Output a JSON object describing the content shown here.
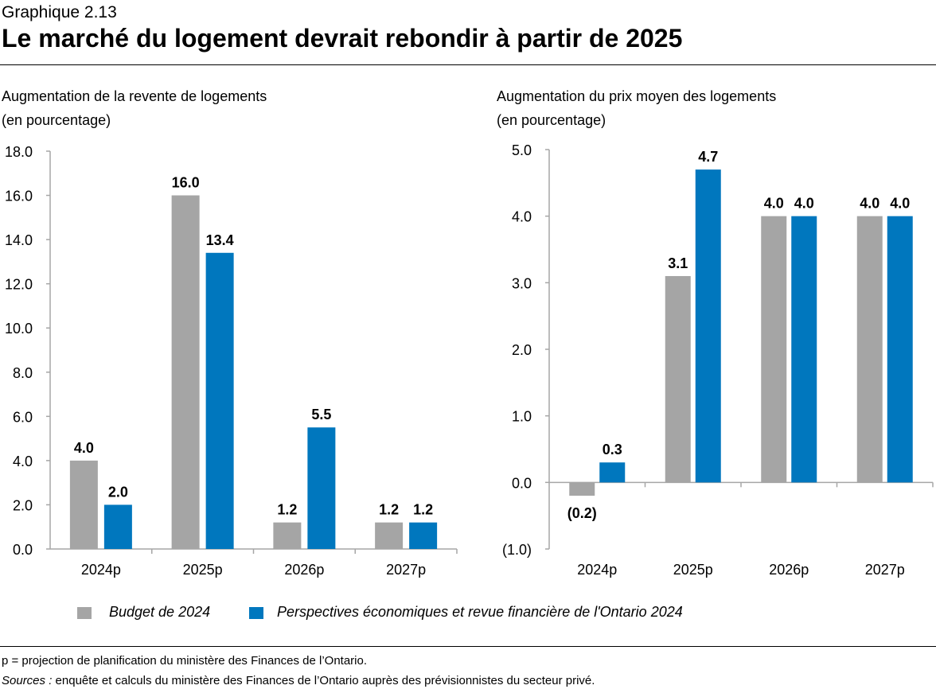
{
  "header": {
    "kicker": "Graphique 2.13",
    "title": "Le marché du logement devrait rebondir à partir de 2025"
  },
  "colors": {
    "budget": "#A5A5A5",
    "perspectives": "#0077BE"
  },
  "chart_data": [
    {
      "type": "bar",
      "title": "Augmentation de la revente de logements",
      "ylabel": "(en pourcentage)",
      "categories": [
        "2024p",
        "2025p",
        "2026p",
        "2027p"
      ],
      "ylim": [
        0,
        18
      ],
      "yticks": [
        "0.0",
        "2.0",
        "4.0",
        "6.0",
        "8.0",
        "10.0",
        "12.0",
        "14.0",
        "16.0",
        "18.0"
      ],
      "grid": false,
      "series": [
        {
          "name": "Budget de 2024",
          "values": [
            4.0,
            16.0,
            1.2,
            1.2
          ],
          "labels": [
            "4.0",
            "16.0",
            "1.2",
            "1.2"
          ]
        },
        {
          "name": "Perspectives économiques et revue financière de l'Ontario 2024",
          "values": [
            2.0,
            13.4,
            5.5,
            1.2
          ],
          "labels": [
            "2.0",
            "13.4",
            "5.5",
            "1.2"
          ]
        }
      ]
    },
    {
      "type": "bar",
      "title": "Augmentation du prix moyen des logements",
      "ylabel": "(en pourcentage)",
      "categories": [
        "2024p",
        "2025p",
        "2026p",
        "2027p"
      ],
      "ylim": [
        -1,
        5
      ],
      "yticks": [
        "(1.0)",
        "0.0",
        "1.0",
        "2.0",
        "3.0",
        "4.0",
        "5.0"
      ],
      "grid": false,
      "series": [
        {
          "name": "Budget de 2024",
          "values": [
            -0.2,
            3.1,
            4.0,
            4.0
          ],
          "labels": [
            "(0.2)",
            "3.1",
            "4.0",
            "4.0"
          ]
        },
        {
          "name": "Perspectives économiques et revue financière de l'Ontario 2024",
          "values": [
            0.3,
            4.7,
            4.0,
            4.0
          ],
          "labels": [
            "0.3",
            "4.7",
            "4.0",
            "4.0"
          ]
        }
      ]
    }
  ],
  "legend": {
    "placement": "bottom",
    "items": [
      "Budget de 2024",
      "Perspectives économiques et revue financière de l'Ontario 2024"
    ]
  },
  "footer": {
    "note": "p = projection de planification du ministère des Finances de l’Ontario.",
    "sources_label": "Sources :",
    "sources_text": " enquête et calculs du ministère des Finances de l’Ontario auprès des prévisionnistes du secteur privé."
  }
}
